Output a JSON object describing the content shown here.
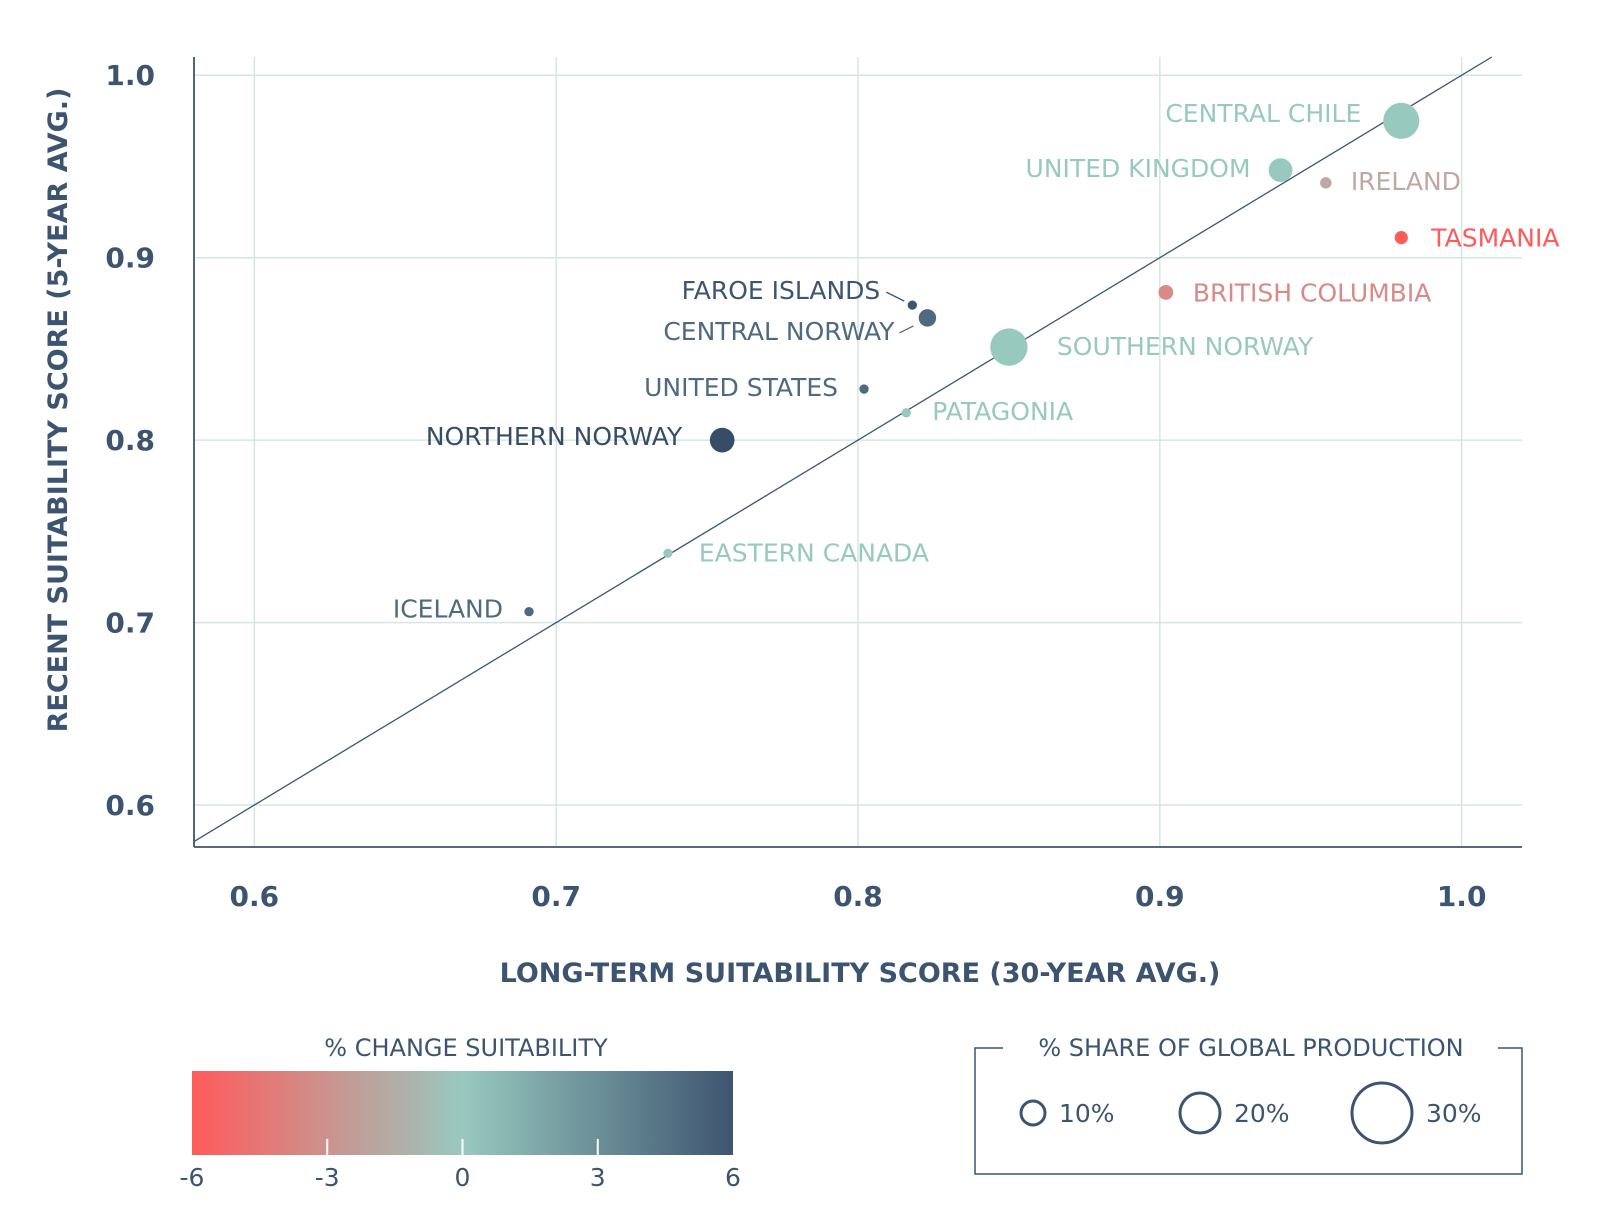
{
  "chart_data": {
    "type": "scatter",
    "title": "",
    "xlabel": "LONG-TERM SUITABILITY SCORE (30-YEAR AVG.)",
    "ylabel": "RECENT SUITABILITY SCORE (5-YEAR AVG.)",
    "xlim": [
      0.58,
      1.02
    ],
    "ylim": [
      0.577,
      1.01
    ],
    "x_ticks": [
      0.6,
      0.7,
      0.8,
      0.9,
      1.0
    ],
    "x_tick_labels": [
      "0.6",
      "0.7",
      "0.8",
      "0.9",
      "1.0"
    ],
    "y_ticks": [
      0.6,
      0.7,
      0.8,
      0.9,
      1.0
    ],
    "y_tick_labels": [
      "0.6",
      "0.7",
      "0.8",
      "0.9",
      "1.0"
    ],
    "grid": true,
    "reference_line": "y = x",
    "points": [
      {
        "label": "CENTRAL CHILE",
        "x": 0.98,
        "y": 0.975,
        "change": 0.5,
        "share": 30,
        "color": "#98c9bf"
      },
      {
        "label": "UNITED KINGDOM",
        "x": 0.94,
        "y": 0.948,
        "change": 0.8,
        "share": 13,
        "color": "#98c9bf"
      },
      {
        "label": "IRELAND",
        "x": 0.955,
        "y": 0.941,
        "change": -1.5,
        "share": 3,
        "color": "#bfa8a3"
      },
      {
        "label": "TASMANIA",
        "x": 0.98,
        "y": 0.911,
        "change": -6,
        "share": 4,
        "color": "#ff5b5b"
      },
      {
        "label": "BRITISH COLUMBIA",
        "x": 0.902,
        "y": 0.881,
        "change": -2.5,
        "share": 5,
        "color": "#d98a87"
      },
      {
        "label": "FAROE ISLANDS",
        "x": 0.818,
        "y": 0.874,
        "change": 6,
        "share": 2,
        "color": "#3e5570"
      },
      {
        "label": "CENTRAL NORWAY",
        "x": 0.823,
        "y": 0.867,
        "change": 5,
        "share": 7,
        "color": "#4f6a80"
      },
      {
        "label": "SOUTHERN NORWAY",
        "x": 0.85,
        "y": 0.851,
        "change": 0.5,
        "share": 32,
        "color": "#98c9bf"
      },
      {
        "label": "UNITED STATES",
        "x": 0.802,
        "y": 0.828,
        "change": 5,
        "share": 2,
        "color": "#4f6a80"
      },
      {
        "label": "PATAGONIA",
        "x": 0.816,
        "y": 0.815,
        "change": 1,
        "share": 2,
        "color": "#98c9bf"
      },
      {
        "label": "NORTHERN NORWAY",
        "x": 0.755,
        "y": 0.8,
        "change": 6,
        "share": 14,
        "color": "#364d66"
      },
      {
        "label": "EASTERN CANADA",
        "x": 0.737,
        "y": 0.738,
        "change": 1,
        "share": 2,
        "color": "#98c9bf"
      },
      {
        "label": "ICELAND",
        "x": 0.691,
        "y": 0.706,
        "change": 4,
        "share": 2,
        "color": "#4f6a80"
      }
    ],
    "color_legend": {
      "title": "% CHANGE SUITABILITY",
      "min": -6,
      "max": 6,
      "ticks": [
        "-6",
        "-3",
        "0",
        "3",
        "6"
      ],
      "colors": [
        "#ff5b5b",
        "#98c9bf",
        "#3e5570"
      ]
    },
    "size_legend": {
      "title": "% SHARE OF GLOBAL PRODUCTION",
      "items": [
        {
          "label": "10%",
          "value": 10
        },
        {
          "label": "20%",
          "value": 20
        },
        {
          "label": "30%",
          "value": 30
        }
      ]
    }
  }
}
